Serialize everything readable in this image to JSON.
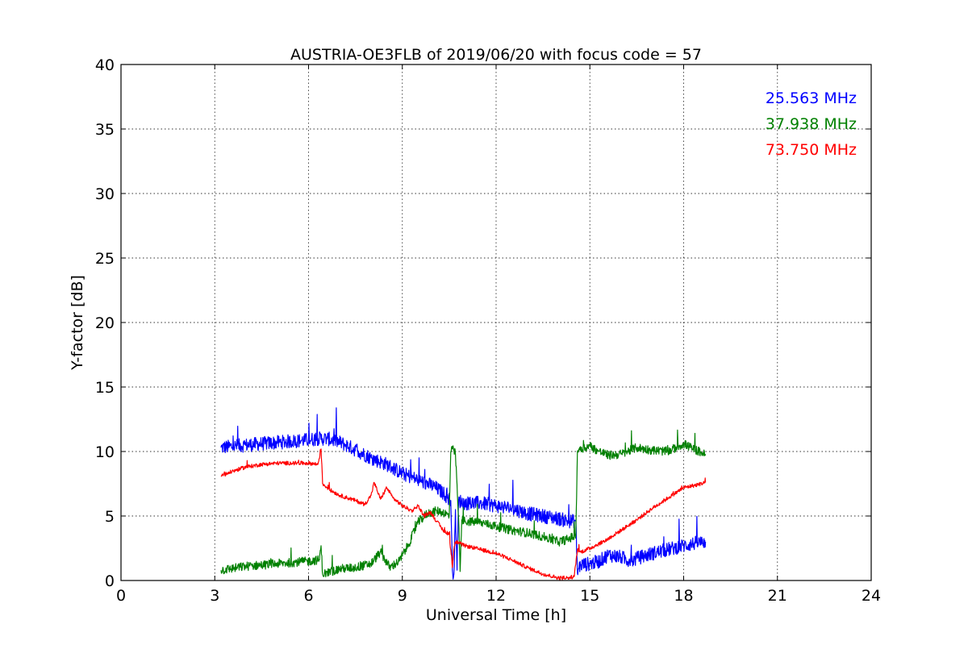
{
  "chart_data": {
    "type": "line",
    "title": "AUSTRIA-OE3FLB of 2019/06/20 with focus code = 57",
    "xlabel": "Universal Time [h]",
    "ylabel": "Y-factor [dB]",
    "xlim": [
      0,
      24
    ],
    "ylim": [
      0,
      40
    ],
    "xticks": [
      "0",
      "3",
      "6",
      "9",
      "12",
      "15",
      "18",
      "21",
      "24"
    ],
    "yticks": [
      "0",
      "5",
      "10",
      "15",
      "20",
      "25",
      "30",
      "35",
      "40"
    ],
    "grid": true,
    "legend_position": "top-right",
    "series": [
      {
        "name": "25.563 MHz",
        "color": "#0000ff",
        "noise": 0.55,
        "x": [
          3.2,
          3.6,
          4.0,
          4.5,
          5.0,
          5.5,
          6.0,
          6.3,
          6.6,
          6.9,
          7.2,
          7.6,
          8.0,
          8.5,
          9.0,
          9.5,
          10.0,
          10.3,
          10.55,
          10.6,
          10.65,
          10.7,
          10.75,
          10.8,
          11.0,
          11.5,
          12.0,
          12.5,
          13.0,
          13.5,
          14.0,
          14.3,
          14.55,
          14.6,
          14.65,
          14.7,
          15.0,
          15.3,
          15.6,
          16.0,
          16.3,
          16.6,
          17.0,
          17.5,
          18.0,
          18.4,
          18.7
        ],
        "y": [
          10.3,
          10.4,
          10.5,
          10.6,
          10.7,
          10.8,
          10.9,
          11.0,
          11.0,
          10.8,
          10.5,
          10.0,
          9.5,
          9.0,
          8.3,
          7.8,
          7.3,
          6.8,
          6.2,
          0.8,
          0.5,
          5.5,
          0.8,
          6.2,
          6.0,
          6.0,
          5.8,
          5.6,
          5.2,
          5.0,
          4.8,
          4.6,
          4.6,
          0.6,
          1.0,
          1.2,
          1.3,
          1.5,
          2.0,
          1.8,
          1.5,
          1.8,
          2.1,
          2.4,
          2.7,
          2.9,
          3.0
        ]
      },
      {
        "name": "37.938 MHz",
        "color": "#008000",
        "noise": 0.35,
        "x": [
          3.2,
          3.6,
          4.0,
          4.5,
          5.0,
          5.5,
          6.0,
          6.35,
          6.4,
          6.45,
          6.6,
          7.0,
          7.5,
          8.0,
          8.3,
          8.6,
          8.9,
          9.2,
          9.5,
          9.8,
          10.1,
          10.3,
          10.5,
          10.55,
          10.6,
          10.7,
          10.8,
          10.85,
          10.9,
          11.0,
          11.5,
          12.0,
          12.5,
          13.0,
          13.5,
          14.0,
          14.3,
          14.55,
          14.6,
          14.65,
          15.0,
          15.3,
          15.6,
          16.0,
          16.5,
          17.0,
          17.5,
          18.0,
          18.3,
          18.6,
          18.7
        ],
        "y": [
          0.8,
          0.95,
          1.1,
          1.2,
          1.3,
          1.4,
          1.5,
          1.6,
          2.7,
          0.5,
          0.6,
          0.9,
          1.0,
          1.3,
          2.2,
          1.0,
          1.5,
          2.8,
          4.5,
          5.2,
          5.4,
          5.3,
          5.0,
          10.0,
          10.2,
          9.8,
          4.8,
          0.7,
          4.7,
          4.6,
          4.5,
          4.2,
          3.9,
          3.7,
          3.4,
          3.0,
          3.2,
          3.5,
          10.0,
          10.2,
          10.4,
          10.0,
          9.7,
          9.8,
          10.3,
          10.1,
          10.0,
          10.6,
          10.2,
          9.9,
          9.7
        ]
      },
      {
        "name": "73.750 MHz",
        "color": "#ff0000",
        "noise": 0.15,
        "x": [
          3.2,
          3.6,
          4.0,
          4.5,
          5.0,
          5.5,
          6.0,
          6.3,
          6.4,
          6.45,
          6.7,
          7.0,
          7.5,
          7.8,
          8.0,
          8.1,
          8.3,
          8.5,
          8.7,
          9.0,
          9.3,
          9.5,
          9.7,
          9.9,
          10.1,
          10.3,
          10.5,
          10.6,
          10.65,
          10.7,
          10.8,
          11.0,
          11.5,
          12.0,
          12.5,
          13.0,
          13.5,
          14.0,
          14.3,
          14.5,
          14.6,
          14.7,
          15.0,
          15.5,
          16.0,
          16.5,
          17.0,
          17.5,
          18.0,
          18.4,
          18.7
        ],
        "y": [
          8.1,
          8.5,
          8.8,
          9.0,
          9.1,
          9.1,
          9.1,
          9.0,
          10.2,
          7.5,
          7.0,
          6.6,
          6.2,
          5.9,
          6.6,
          7.6,
          6.3,
          7.2,
          6.4,
          5.8,
          5.4,
          5.8,
          5.0,
          5.3,
          4.6,
          3.9,
          3.6,
          1.0,
          2.4,
          3.0,
          2.9,
          2.7,
          2.4,
          2.1,
          1.6,
          1.0,
          0.5,
          0.2,
          0.2,
          0.3,
          2.4,
          2.2,
          2.5,
          3.1,
          3.9,
          4.7,
          5.6,
          6.4,
          7.2,
          7.4,
          7.6
        ]
      }
    ]
  }
}
